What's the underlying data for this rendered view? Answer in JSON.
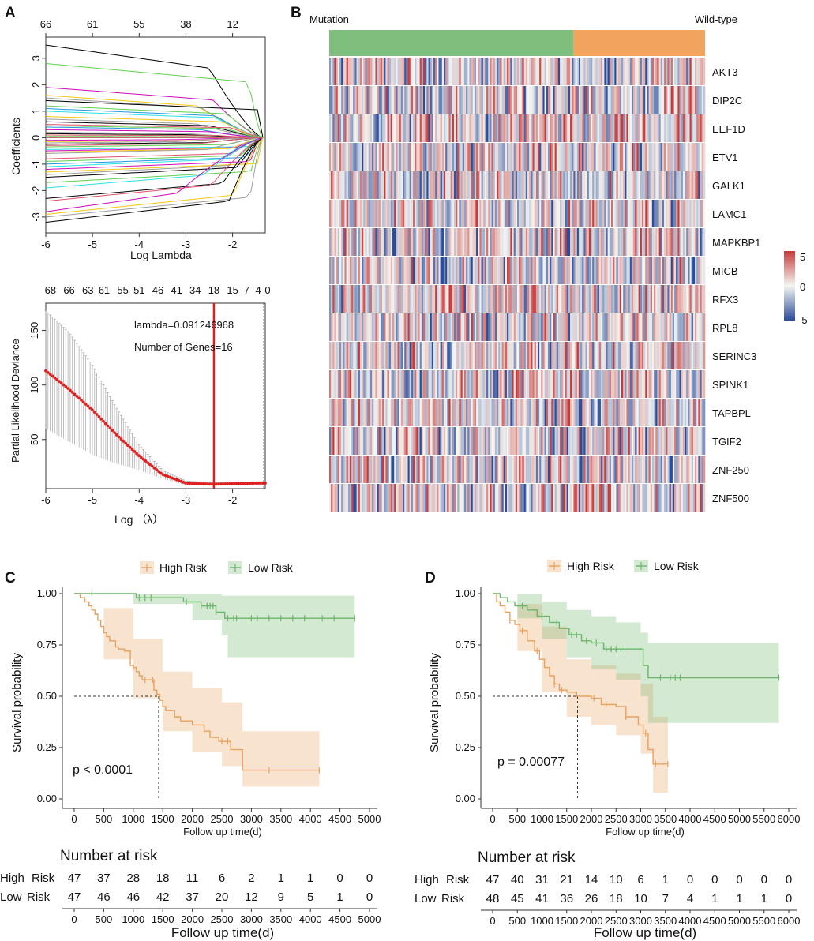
{
  "panels": {
    "a": "A",
    "b": "B",
    "c": "C",
    "d": "D"
  },
  "chart_data": [
    {
      "type": "line",
      "panel": "A",
      "title": "",
      "xlabel": "Log Lambda",
      "ylabel": "Coefficients",
      "xlim": [
        -6.0,
        -1.3
      ],
      "ylim": [
        -3.6,
        3.8
      ],
      "x_ticks": [
        "-6",
        "-5",
        "-4",
        "-3",
        "-2"
      ],
      "y_ticks": [
        "-3",
        "-2",
        "-1",
        "0",
        "1",
        "2",
        "3"
      ],
      "top_ticks": [
        "66",
        "61",
        "55",
        "38",
        "12"
      ],
      "top_tick_positions": [
        -6.0,
        -5.0,
        -4.0,
        -3.0,
        -2.0
      ],
      "n_series": 66,
      "series_colors": [
        "#000000",
        "#df536b",
        "#61d04f",
        "#2297e6",
        "#28e2e5",
        "#cd0bbc",
        "#f5c710",
        "#9e9e9e"
      ],
      "series_start_values": [
        3.5,
        3.1,
        2.8,
        2.4,
        2.1,
        1.9,
        1.6,
        1.5,
        1.4,
        1.3,
        1.2,
        1.1,
        1.0,
        0.9,
        0.8,
        0.7,
        0.6,
        0.5,
        0.45,
        0.4,
        0.35,
        0.3,
        0.25,
        0.2,
        0.15,
        0.1,
        0.05,
        0.0,
        -0.05,
        -0.1,
        -0.15,
        -0.2,
        -0.25,
        -0.3,
        -0.35,
        -0.4,
        -0.45,
        -0.5,
        -0.55,
        -0.6,
        -0.7,
        -0.8,
        -0.9,
        -1.0,
        -1.1,
        -1.2,
        -1.3,
        -1.4,
        -1.5,
        -1.6,
        -1.7,
        -1.8,
        -1.9,
        -2.0,
        -2.1,
        -2.2,
        -2.3,
        -2.4,
        -2.5,
        -2.6,
        -2.7,
        -2.8,
        -2.9,
        -3.0,
        -3.2,
        -3.4
      ]
    },
    {
      "type": "line",
      "panel": "A-bottom",
      "title": "",
      "xlabel": "Log （λ）",
      "ylabel": "Partial Likelihood Deviance",
      "xlim": [
        -6.0,
        -1.3
      ],
      "ylim": [
        5,
        175
      ],
      "x_ticks": [
        "-6",
        "-5",
        "-4",
        "-3",
        "-2"
      ],
      "y_ticks": [
        "50",
        "100",
        "150"
      ],
      "top_ticks": [
        "68",
        "66",
        "63",
        "61",
        "55",
        "51",
        "46",
        "41",
        "34",
        "18",
        "15",
        "7",
        "4",
        "0"
      ],
      "top_tick_positions": [
        -5.9,
        -5.5,
        -5.1,
        -4.75,
        -4.35,
        -4.0,
        -3.6,
        -3.2,
        -2.8,
        -2.4,
        -2.0,
        -1.7,
        -1.45,
        -1.25
      ],
      "annotation_lambda": "lambda=0.091246968",
      "annotation_genes": "Number of Genes=16",
      "lambda_min_log": -2.4,
      "lambda_1se_log": -1.3,
      "n_points": 100,
      "curve_points": [
        [
          -6.0,
          113
        ],
        [
          -5.5,
          96
        ],
        [
          -5.0,
          77
        ],
        [
          -4.5,
          55
        ],
        [
          -4.0,
          35
        ],
        [
          -3.5,
          18
        ],
        [
          -3.0,
          10
        ],
        [
          -2.4,
          9
        ],
        [
          -2.0,
          9.5
        ],
        [
          -1.5,
          10
        ],
        [
          -1.3,
          10
        ]
      ],
      "error_upper": [
        [
          -6.0,
          168
        ],
        [
          -5.5,
          148
        ],
        [
          -5.0,
          118
        ],
        [
          -4.5,
          80
        ],
        [
          -4.0,
          45
        ],
        [
          -3.5,
          22
        ],
        [
          -3.0,
          12
        ],
        [
          -2.4,
          10.5
        ],
        [
          -1.3,
          11.5
        ]
      ],
      "error_lower": [
        [
          -6.0,
          60
        ],
        [
          -5.5,
          48
        ],
        [
          -5.0,
          36
        ],
        [
          -4.5,
          28
        ],
        [
          -4.0,
          22
        ],
        [
          -3.5,
          14
        ],
        [
          -3.0,
          8
        ],
        [
          -2.4,
          7.5
        ],
        [
          -1.3,
          8.5
        ]
      ]
    },
    {
      "type": "heatmap",
      "panel": "B",
      "group_labels": [
        "Mutation",
        "Wild-type"
      ],
      "group_colors": [
        "#80be7e",
        "#f2a45e"
      ],
      "group_fraction_mutation": 0.65,
      "rows": [
        "AKT3",
        "DIP2C",
        "EEF1D",
        "ETV1",
        "GALK1",
        "LAMC1",
        "MAPKBP1",
        "MICB",
        "RFX3",
        "RPL8",
        "SERINC3",
        "SPINK1",
        "TAPBPL",
        "TGIF2",
        "ZNF250",
        "ZNF500"
      ],
      "n_columns": 220,
      "scale_range": [
        -5,
        5
      ],
      "scale_ticks": [
        "5",
        "0",
        "-5"
      ],
      "scale_colors": [
        "#c83a3a",
        "#f4f6f2",
        "#2b4c9a"
      ]
    },
    {
      "type": "line",
      "panel": "C",
      "plot_kind": "kaplan-meier",
      "xlabel": "Follow up time(d)",
      "ylabel": "Survival probability",
      "xlim": [
        0,
        5000
      ],
      "ylim": [
        0,
        1
      ],
      "x_ticks": [
        "0",
        "500",
        "1000",
        "1500",
        "2000",
        "2500",
        "3000",
        "3500",
        "4000",
        "4500",
        "5000"
      ],
      "y_ticks": [
        "0.00",
        "0.25",
        "0.50",
        "0.75",
        "1.00"
      ],
      "pvalue_text": "p < 0.0001",
      "median_survival": {
        "x": 1430,
        "y": 0.5
      },
      "legend": [
        "High Risk",
        "Low Risk"
      ],
      "series": [
        {
          "name": "High Risk",
          "color": "#e9a15f",
          "steps": [
            [
              0,
              1.0
            ],
            [
              100,
              0.98
            ],
            [
              180,
              0.96
            ],
            [
              250,
              0.94
            ],
            [
              300,
              0.92
            ],
            [
              350,
              0.9
            ],
            [
              400,
              0.87
            ],
            [
              450,
              0.84
            ],
            [
              500,
              0.81
            ],
            [
              550,
              0.79
            ],
            [
              600,
              0.77
            ],
            [
              700,
              0.74
            ],
            [
              750,
              0.73
            ],
            [
              850,
              0.72
            ],
            [
              950,
              0.65
            ],
            [
              1000,
              0.64
            ],
            [
              1050,
              0.62
            ],
            [
              1100,
              0.6
            ],
            [
              1150,
              0.58
            ],
            [
              1250,
              0.58
            ],
            [
              1350,
              0.53
            ],
            [
              1400,
              0.51
            ],
            [
              1450,
              0.48
            ],
            [
              1500,
              0.45
            ],
            [
              1550,
              0.43
            ],
            [
              1700,
              0.4
            ],
            [
              1800,
              0.38
            ],
            [
              2000,
              0.36
            ],
            [
              2200,
              0.33
            ],
            [
              2300,
              0.3
            ],
            [
              2450,
              0.28
            ],
            [
              2600,
              0.28
            ],
            [
              2650,
              0.24
            ],
            [
              2850,
              0.14
            ],
            [
              4150,
              0.14
            ]
          ],
          "ci_upper": [
            [
              0,
              1.0
            ],
            [
              500,
              0.93
            ],
            [
              1000,
              0.78
            ],
            [
              1500,
              0.62
            ],
            [
              2000,
              0.54
            ],
            [
              2500,
              0.47
            ],
            [
              2850,
              0.33
            ],
            [
              4150,
              0.33
            ]
          ],
          "ci_lower": [
            [
              0,
              1.0
            ],
            [
              500,
              0.68
            ],
            [
              1000,
              0.49
            ],
            [
              1500,
              0.33
            ],
            [
              2000,
              0.23
            ],
            [
              2500,
              0.16
            ],
            [
              2850,
              0.06
            ],
            [
              4150,
              0.06
            ]
          ],
          "censor_times": [
            1000,
            1200,
            1330,
            2200,
            2500,
            2600,
            3300,
            4150
          ],
          "at_risk": [
            "47",
            "37",
            "28",
            "18",
            "11",
            "6",
            "2",
            "1",
            "1",
            "0",
            "0"
          ]
        },
        {
          "name": "Low Risk",
          "color": "#6db56b",
          "steps": [
            [
              0,
              1.0
            ],
            [
              1050,
              0.98
            ],
            [
              1850,
              0.96
            ],
            [
              2150,
              0.94
            ],
            [
              2400,
              0.91
            ],
            [
              2550,
              0.88
            ],
            [
              4750,
              0.88
            ]
          ],
          "ci_upper": [
            [
              0,
              1.0
            ],
            [
              1000,
              1.0
            ],
            [
              2000,
              1.0
            ],
            [
              2500,
              0.99
            ],
            [
              4750,
              0.97
            ]
          ],
          "ci_lower": [
            [
              0,
              1.0
            ],
            [
              1000,
              0.95
            ],
            [
              2000,
              0.87
            ],
            [
              2500,
              0.8
            ],
            [
              2600,
              0.69
            ],
            [
              4750,
              0.69
            ]
          ],
          "censor_times": [
            300,
            1100,
            1200,
            1300,
            1900,
            2150,
            2250,
            2300,
            2350,
            2400,
            2600,
            2700,
            2750,
            3000,
            3100,
            3300,
            3500,
            3700,
            3900,
            4200,
            4400,
            4750
          ],
          "at_risk": [
            "47",
            "46",
            "46",
            "42",
            "37",
            "20",
            "12",
            "9",
            "5",
            "1",
            "0"
          ]
        }
      ],
      "risk_table_title": "Number at risk",
      "risk_table_xlabel": "Follow up time(d)"
    },
    {
      "type": "line",
      "panel": "D",
      "plot_kind": "kaplan-meier",
      "xlabel": "Follow up time(d)",
      "ylabel": "Survival probability",
      "xlim": [
        0,
        6000
      ],
      "ylim": [
        0,
        1
      ],
      "x_ticks": [
        "0",
        "500",
        "1000",
        "1500",
        "2000",
        "2500",
        "3000",
        "3500",
        "4000",
        "4500",
        "5000",
        "5500",
        "6000"
      ],
      "y_ticks": [
        "0.00",
        "0.25",
        "0.50",
        "0.75",
        "1.00"
      ],
      "pvalue_text": "p = 0.00077",
      "median_survival": {
        "x": 1720,
        "y": 0.5
      },
      "legend": [
        "High Risk",
        "Low Risk"
      ],
      "series": [
        {
          "name": "High Risk",
          "color": "#e9a15f",
          "steps": [
            [
              0,
              1.0
            ],
            [
              80,
              0.96
            ],
            [
              150,
              0.94
            ],
            [
              250,
              0.91
            ],
            [
              350,
              0.87
            ],
            [
              450,
              0.85
            ],
            [
              550,
              0.82
            ],
            [
              700,
              0.77
            ],
            [
              850,
              0.72
            ],
            [
              950,
              0.68
            ],
            [
              1050,
              0.64
            ],
            [
              1150,
              0.6
            ],
            [
              1250,
              0.56
            ],
            [
              1350,
              0.53
            ],
            [
              1500,
              0.52
            ],
            [
              1700,
              0.5
            ],
            [
              2000,
              0.49
            ],
            [
              2200,
              0.46
            ],
            [
              2500,
              0.45
            ],
            [
              2700,
              0.4
            ],
            [
              2950,
              0.36
            ],
            [
              3050,
              0.32
            ],
            [
              3150,
              0.24
            ],
            [
              3250,
              0.17
            ],
            [
              3550,
              0.17
            ]
          ],
          "ci_upper": [
            [
              0,
              1.0
            ],
            [
              500,
              0.95
            ],
            [
              1000,
              0.84
            ],
            [
              1500,
              0.68
            ],
            [
              2000,
              0.65
            ],
            [
              2500,
              0.61
            ],
            [
              3000,
              0.56
            ],
            [
              3250,
              0.4
            ],
            [
              3550,
              0.4
            ]
          ],
          "ci_lower": [
            [
              0,
              1.0
            ],
            [
              500,
              0.72
            ],
            [
              1000,
              0.52
            ],
            [
              1500,
              0.4
            ],
            [
              2000,
              0.36
            ],
            [
              2500,
              0.31
            ],
            [
              3000,
              0.22
            ],
            [
              3250,
              0.03
            ],
            [
              3550,
              0.03
            ]
          ],
          "censor_times": [
            350,
            600,
            900,
            1250,
            1400,
            2050,
            2300,
            2700,
            3100,
            3300,
            3550
          ],
          "at_risk": [
            "47",
            "40",
            "31",
            "21",
            "14",
            "10",
            "6",
            "1",
            "0",
            "0",
            "0",
            "0",
            "0"
          ]
        },
        {
          "name": "Low Risk",
          "color": "#6db56b",
          "steps": [
            [
              0,
              1.0
            ],
            [
              150,
              0.98
            ],
            [
              300,
              0.96
            ],
            [
              450,
              0.94
            ],
            [
              700,
              0.92
            ],
            [
              900,
              0.89
            ],
            [
              1150,
              0.86
            ],
            [
              1350,
              0.83
            ],
            [
              1550,
              0.8
            ],
            [
              1800,
              0.77
            ],
            [
              2000,
              0.76
            ],
            [
              2250,
              0.73
            ],
            [
              2550,
              0.73
            ],
            [
              3050,
              0.65
            ],
            [
              3150,
              0.59
            ],
            [
              5800,
              0.59
            ]
          ],
          "ci_upper": [
            [
              0,
              1.0
            ],
            [
              500,
              1.0
            ],
            [
              1000,
              0.96
            ],
            [
              1500,
              0.92
            ],
            [
              2000,
              0.89
            ],
            [
              2500,
              0.86
            ],
            [
              3000,
              0.81
            ],
            [
              3150,
              0.76
            ],
            [
              5800,
              0.76
            ]
          ],
          "ci_lower": [
            [
              0,
              1.0
            ],
            [
              500,
              0.88
            ],
            [
              1000,
              0.78
            ],
            [
              1500,
              0.69
            ],
            [
              2000,
              0.63
            ],
            [
              2500,
              0.58
            ],
            [
              3000,
              0.5
            ],
            [
              3150,
              0.37
            ],
            [
              5800,
              0.37
            ]
          ],
          "censor_times": [
            600,
            1000,
            1300,
            1600,
            1700,
            1900,
            2100,
            2300,
            2400,
            2500,
            2600,
            3400,
            3600,
            3700,
            3800,
            5800
          ],
          "at_risk": [
            "48",
            "45",
            "41",
            "36",
            "26",
            "18",
            "10",
            "7",
            "4",
            "1",
            "1",
            "1",
            "0"
          ]
        }
      ],
      "risk_table_title": "Number at risk",
      "risk_table_xlabel": "Follow up time(d)"
    }
  ],
  "risk_table_labels": {
    "high": [
      "High",
      "Risk"
    ],
    "low": [
      "Low",
      "Risk"
    ]
  }
}
